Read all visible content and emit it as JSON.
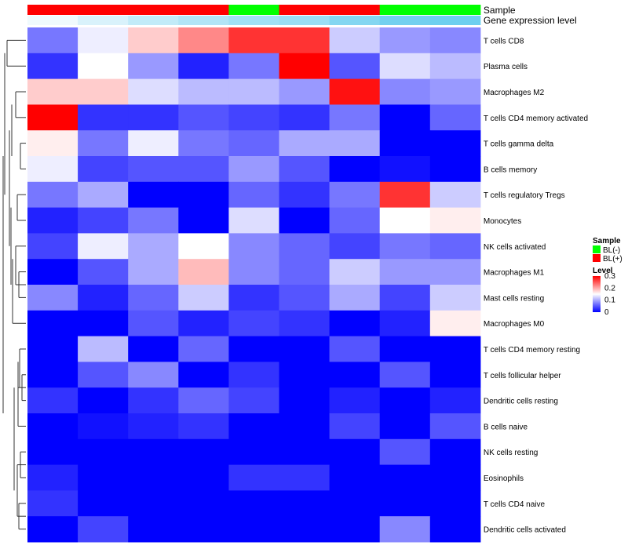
{
  "chart_data": {
    "type": "heatmap",
    "title": "",
    "xlabel": "",
    "ylabel": "",
    "annotations": [
      {
        "name": "Sample",
        "values": [
          "BL(+)",
          "BL(+)",
          "BL(+)",
          "BL(+)",
          "BL(-)",
          "BL(+)",
          "BL(+)",
          "BL(-)",
          "BL(-)"
        ],
        "colors": {
          "BL(-)": "#00ff00",
          "BL(+)": "#ff0000"
        }
      },
      {
        "name": "Gene expression level",
        "values": [
          0.02,
          0.06,
          0.1,
          0.13,
          0.16,
          0.17,
          0.21,
          0.24,
          0.25
        ],
        "colors": {
          "low": "#ffffff",
          "high": "#66ccee"
        }
      }
    ],
    "rows": [
      "T cells CD8",
      "Plasma cells",
      "Macrophages M2",
      "T cells CD4 memory activated",
      "T cells gamma delta",
      "B cells memory",
      "T cells regulatory  Tregs",
      "Monocytes",
      "NK cells activated",
      "Macrophages M1",
      "Mast cells resting",
      "Macrophages M0",
      "T cells CD4 memory resting",
      "T cells follicular helper",
      "Dendritic cells resting",
      "B cells naive",
      "NK cells resting",
      "Eosinophils",
      "T cells CD4 naive",
      "Dendritic cells activated"
    ],
    "values": [
      [
        0.07,
        0.14,
        0.18,
        0.22,
        0.27,
        0.27,
        0.12,
        0.09,
        0.08
      ],
      [
        0.03,
        0.15,
        0.09,
        0.02,
        0.07,
        0.32,
        0.05,
        0.13,
        0.11
      ],
      [
        0.18,
        0.18,
        0.13,
        0.11,
        0.11,
        0.09,
        0.29,
        0.08,
        0.09
      ],
      [
        0.32,
        0.03,
        0.03,
        0.05,
        0.04,
        0.03,
        0.07,
        0.0,
        0.06
      ],
      [
        0.16,
        0.07,
        0.14,
        0.07,
        0.06,
        0.1,
        0.1,
        0.0,
        0.0
      ],
      [
        0.14,
        0.04,
        0.05,
        0.05,
        0.09,
        0.05,
        0.0,
        0.01,
        0.0
      ],
      [
        0.07,
        0.1,
        0.0,
        0.0,
        0.06,
        0.03,
        0.07,
        0.27,
        0.12
      ],
      [
        0.02,
        0.04,
        0.07,
        0.0,
        0.13,
        0.0,
        0.06,
        0.15,
        0.16
      ],
      [
        0.04,
        0.14,
        0.1,
        0.15,
        0.08,
        0.06,
        0.04,
        0.07,
        0.06
      ],
      [
        0.0,
        0.05,
        0.1,
        0.19,
        0.08,
        0.06,
        0.12,
        0.09,
        0.09
      ],
      [
        0.08,
        0.02,
        0.06,
        0.12,
        0.03,
        0.05,
        0.1,
        0.04,
        0.12
      ],
      [
        0.0,
        0.0,
        0.05,
        0.02,
        0.04,
        0.03,
        0.0,
        0.02,
        0.16
      ],
      [
        0.0,
        0.11,
        0.0,
        0.06,
        0.0,
        0.0,
        0.05,
        0.0,
        0.0
      ],
      [
        0.0,
        0.05,
        0.08,
        0.0,
        0.03,
        0.0,
        0.0,
        0.05,
        0.0
      ],
      [
        0.03,
        0.0,
        0.03,
        0.06,
        0.04,
        0.0,
        0.02,
        0.0,
        0.02
      ],
      [
        0.0,
        0.01,
        0.02,
        0.03,
        0.0,
        0.0,
        0.04,
        0.0,
        0.05
      ],
      [
        0.0,
        0.0,
        0.0,
        0.0,
        0.0,
        0.0,
        0.0,
        0.05,
        0.0
      ],
      [
        0.02,
        0.0,
        0.0,
        0.0,
        0.03,
        0.03,
        0.0,
        0.0,
        0.0
      ],
      [
        0.03,
        0.0,
        0.0,
        0.0,
        0.0,
        0.0,
        0.0,
        0.0,
        0.0
      ],
      [
        0.0,
        0.04,
        0.0,
        0.0,
        0.0,
        0.0,
        0.0,
        0.08,
        0.0
      ]
    ],
    "color_scale": {
      "min": 0,
      "mid": 0.15,
      "max": 0.3,
      "low_color": "#0000ff",
      "mid_color": "#ffffff",
      "high_color": "#ff0000"
    },
    "legend": {
      "placement": "right",
      "sample_title": "Sample",
      "sample_entries": [
        {
          "label": "BL(-)",
          "color": "#00ff00"
        },
        {
          "label": "BL(+)",
          "color": "#ff0000"
        }
      ],
      "level_title": "Level",
      "level_ticks": [
        {
          "value": 0.3,
          "label": "0.3"
        },
        {
          "value": 0.2,
          "label": "0.2"
        },
        {
          "value": 0.1,
          "label": "0.1"
        },
        {
          "value": 0,
          "label": "0"
        }
      ]
    },
    "row_dendrogram": true,
    "grid": false
  }
}
